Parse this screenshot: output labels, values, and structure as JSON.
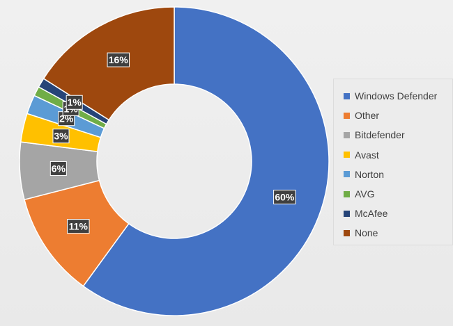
{
  "chart_data": {
    "type": "pie",
    "title": "",
    "donut": true,
    "categories": [
      "Windows Defender",
      "Other",
      "Bitdefender",
      "Avast",
      "Norton",
      "AVG",
      "McAfee",
      "None"
    ],
    "values": [
      60,
      11,
      6,
      3,
      2,
      1,
      1,
      16
    ],
    "labels": [
      "60%",
      "11%",
      "6%",
      "3%",
      "2%",
      "1%",
      "1%",
      "16%"
    ],
    "colors": [
      "#4472c4",
      "#ed7d31",
      "#a5a5a5",
      "#ffc000",
      "#5b9bd5",
      "#70ad47",
      "#264478",
      "#9e480e"
    ],
    "legend_position": "right"
  }
}
